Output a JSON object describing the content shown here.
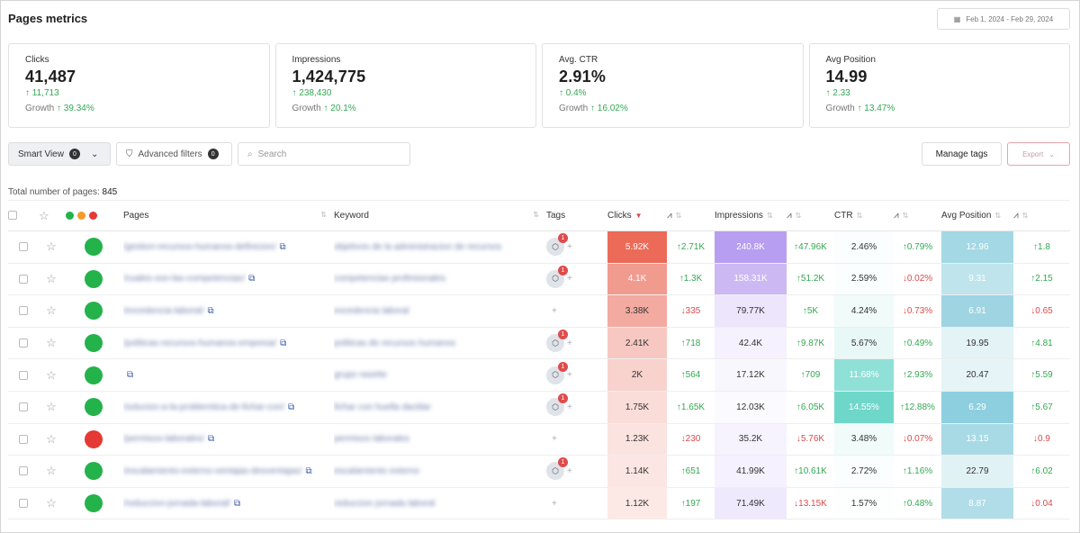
{
  "title": "Pages metrics",
  "date_range": "Feb 1, 2024 - Feb 29, 2024",
  "metrics": [
    {
      "label": "Clicks",
      "value": "41,487",
      "delta": "11,713",
      "growth_label": "Growth",
      "growth": "39.34%"
    },
    {
      "label": "Impressions",
      "value": "1,424,775",
      "delta": "238,430",
      "growth_label": "Growth",
      "growth": "20.1%"
    },
    {
      "label": "Avg. CTR",
      "value": "2.91%",
      "delta": "0.4%",
      "growth_label": "Growth",
      "growth": "16.02%"
    },
    {
      "label": "Avg Position",
      "value": "14.99",
      "delta": "2.33",
      "growth_label": "Growth",
      "growth": "13.47%"
    }
  ],
  "toolbar": {
    "smart_view": "Smart View",
    "smart_count": "0",
    "advanced": "Advanced filters",
    "adv_count": "0",
    "search_placeholder": "Search",
    "manage_tags": "Manage tags",
    "export": "Export"
  },
  "total_label": "Total number of pages:",
  "total_value": "845",
  "columns": {
    "pages": "Pages",
    "keyword": "Keyword",
    "tags": "Tags",
    "clicks": "Clicks",
    "impressions": "Impressions",
    "ctr": "CTR",
    "position": "Avg Position"
  },
  "colors": {
    "green": "#24b24b",
    "red": "#e53935",
    "orange": "#f59a2a"
  },
  "rows": [
    {
      "status": "green",
      "page": "/gestion-recursos-humanos-definicion/",
      "keyword": "objetivos de la administracion de recursos",
      "tagged": true,
      "clicks": "5.92K",
      "clicks_d": "2.71K",
      "clicks_dir": "up",
      "impr": "240.8K",
      "impr_d": "47.96K",
      "impr_dir": "up",
      "ctr": "2.46%",
      "ctr_d": "0.79%",
      "ctr_dir": "up",
      "pos": "12.96",
      "pos_d": "1.8",
      "pos_dir": "up"
    },
    {
      "status": "green",
      "page": "/cuales-son-las-competencias/",
      "keyword": "competencias profesionales",
      "tagged": true,
      "clicks": "4.1K",
      "clicks_d": "1.3K",
      "clicks_dir": "up",
      "impr": "158.31K",
      "impr_d": "51.2K",
      "impr_dir": "up",
      "ctr": "2.59%",
      "ctr_d": "0.02%",
      "ctr_dir": "dn",
      "pos": "9.31",
      "pos_d": "2.15",
      "pos_dir": "up"
    },
    {
      "status": "green",
      "page": "/excedencia-laboral/",
      "keyword": "excedencia laboral",
      "tagged": false,
      "clicks": "3.38K",
      "clicks_d": "335",
      "clicks_dir": "dn",
      "impr": "79.77K",
      "impr_d": "5K",
      "impr_dir": "up",
      "ctr": "4.24%",
      "ctr_d": "0.73%",
      "ctr_dir": "dn",
      "pos": "6.91",
      "pos_d": "0.65",
      "pos_dir": "dn"
    },
    {
      "status": "green",
      "page": "/politicas-recursos-humanos-empresa/",
      "keyword": "politicas de recursos humanos",
      "tagged": true,
      "clicks": "2.41K",
      "clicks_d": "718",
      "clicks_dir": "up",
      "impr": "42.4K",
      "impr_d": "9.87K",
      "impr_dir": "up",
      "ctr": "5.67%",
      "ctr_d": "0.49%",
      "ctr_dir": "up",
      "pos": "19.95",
      "pos_d": "4.81",
      "pos_dir": "up"
    },
    {
      "status": "green",
      "page": "",
      "keyword": "grupo rasette",
      "tagged": true,
      "clicks": "2K",
      "clicks_d": "564",
      "clicks_dir": "up",
      "impr": "17.12K",
      "impr_d": "709",
      "impr_dir": "up",
      "ctr": "11.68%",
      "ctr_d": "2.93%",
      "ctr_dir": "up",
      "pos": "20.47",
      "pos_d": "5.59",
      "pos_dir": "up"
    },
    {
      "status": "green",
      "page": "/solucion-a-la-problemtica-de-fichar-con/",
      "keyword": "fichar con huella dactilar",
      "tagged": true,
      "clicks": "1.75K",
      "clicks_d": "1.65K",
      "clicks_dir": "up",
      "impr": "12.03K",
      "impr_d": "6.05K",
      "impr_dir": "up",
      "ctr": "14.55%",
      "ctr_d": "12.88%",
      "ctr_dir": "up",
      "pos": "6.29",
      "pos_d": "5.67",
      "pos_dir": "up"
    },
    {
      "status": "red",
      "page": "/permisos-laborales/",
      "keyword": "permisos laborales",
      "tagged": false,
      "clicks": "1.23K",
      "clicks_d": "230",
      "clicks_dir": "dn",
      "impr": "35.2K",
      "impr_d": "5.76K",
      "impr_dir": "dn",
      "ctr": "3.48%",
      "ctr_d": "0.07%",
      "ctr_dir": "dn",
      "pos": "13.15",
      "pos_d": "0.9",
      "pos_dir": "dn"
    },
    {
      "status": "green",
      "page": "/escalamiento-externo-ventajas-desventajas/",
      "keyword": "escalamiento externo",
      "tagged": true,
      "clicks": "1.14K",
      "clicks_d": "651",
      "clicks_dir": "up",
      "impr": "41.99K",
      "impr_d": "10.61K",
      "impr_dir": "up",
      "ctr": "2.72%",
      "ctr_d": "1.16%",
      "ctr_dir": "up",
      "pos": "22.79",
      "pos_d": "6.02",
      "pos_dir": "up"
    },
    {
      "status": "green",
      "page": "/reduccion-jornada-laboral/",
      "keyword": "reduccion jornada laboral",
      "tagged": false,
      "clicks": "1.12K",
      "clicks_d": "197",
      "clicks_dir": "up",
      "impr": "71.49K",
      "impr_d": "13.15K",
      "impr_dir": "dn",
      "ctr": "1.57%",
      "ctr_d": "0.48%",
      "ctr_dir": "up",
      "pos": "8.87",
      "pos_d": "0.04",
      "pos_dir": "dn"
    }
  ]
}
